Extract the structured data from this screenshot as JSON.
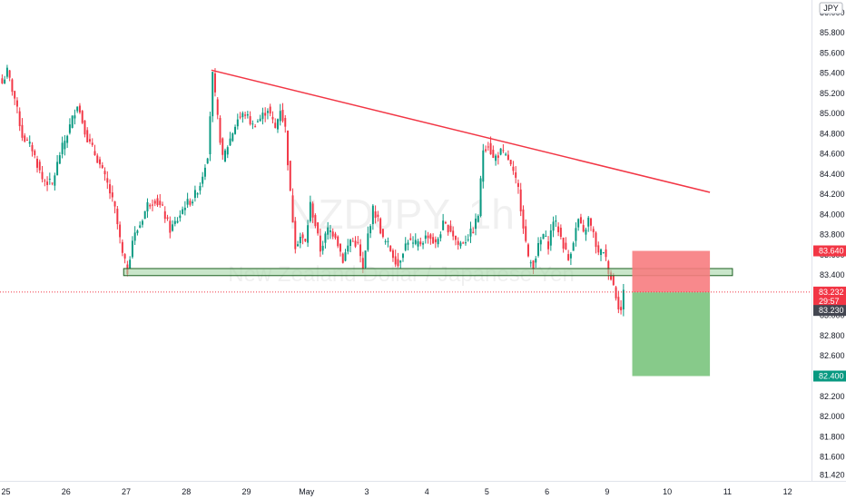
{
  "chart_data": {
    "type": "candlestick",
    "symbol": "NZDJPY",
    "interval": "1h",
    "watermark_title": "NZDJPY, 1h",
    "watermark_subtitle": "New Zealand Dollar / Japanese Yen",
    "currency": "JPY",
    "ylim": [
      81.38,
      86.08
    ],
    "y_ticks": [
      "86.000",
      "85.800",
      "85.600",
      "85.400",
      "85.200",
      "85.000",
      "84.800",
      "84.600",
      "84.400",
      "84.200",
      "84.000",
      "83.800",
      "83.600",
      "83.400",
      "83.200",
      "83.000",
      "82.800",
      "82.600",
      "82.400",
      "82.200",
      "82.000",
      "81.800",
      "81.600",
      "81.420"
    ],
    "x_ticks": [
      {
        "label": "25",
        "bar": 2
      },
      {
        "label": "26",
        "bar": 26
      },
      {
        "label": "27",
        "bar": 50
      },
      {
        "label": "28",
        "bar": 74
      },
      {
        "label": "29",
        "bar": 98
      },
      {
        "label": "May",
        "bar": 122
      },
      {
        "label": "3",
        "bar": 146
      },
      {
        "label": "4",
        "bar": 170
      },
      {
        "label": "5",
        "bar": 194
      },
      {
        "label": "6",
        "bar": 218
      },
      {
        "label": "9",
        "bar": 242
      },
      {
        "label": "10",
        "bar": 266
      },
      {
        "label": "11",
        "bar": 290
      },
      {
        "label": "12",
        "bar": 314
      }
    ],
    "anchors": [
      [
        0,
        85.3
      ],
      [
        2,
        85.42
      ],
      [
        5,
        85.15
      ],
      [
        8,
        84.78
      ],
      [
        12,
        84.65
      ],
      [
        16,
        84.35
      ],
      [
        20,
        84.3
      ],
      [
        23,
        84.6
      ],
      [
        26,
        84.8
      ],
      [
        30,
        85.1
      ],
      [
        34,
        84.75
      ],
      [
        38,
        84.55
      ],
      [
        42,
        84.3
      ],
      [
        45,
        84.05
      ],
      [
        48,
        83.6
      ],
      [
        50,
        83.44
      ],
      [
        52,
        83.75
      ],
      [
        55,
        83.9
      ],
      [
        58,
        84.1
      ],
      [
        61,
        84.15
      ],
      [
        64,
        84.05
      ],
      [
        67,
        83.85
      ],
      [
        70,
        83.95
      ],
      [
        73,
        84.1
      ],
      [
        76,
        84.15
      ],
      [
        79,
        84.3
      ],
      [
        82,
        84.6
      ],
      [
        84,
        85.38
      ],
      [
        86,
        84.95
      ],
      [
        88,
        84.55
      ],
      [
        91,
        84.75
      ],
      [
        94,
        84.95
      ],
      [
        97,
        85.0
      ],
      [
        100,
        84.88
      ],
      [
        103,
        84.95
      ],
      [
        106,
        85.05
      ],
      [
        109,
        84.85
      ],
      [
        111,
        85.05
      ],
      [
        113,
        84.85
      ],
      [
        115,
        84.2
      ],
      [
        117,
        83.7
      ],
      [
        119,
        83.78
      ],
      [
        121,
        83.72
      ],
      [
        123,
        84.1
      ],
      [
        125,
        83.9
      ],
      [
        127,
        83.65
      ],
      [
        130,
        83.85
      ],
      [
        133,
        83.8
      ],
      [
        136,
        83.55
      ],
      [
        139,
        83.75
      ],
      [
        142,
        83.7
      ],
      [
        144,
        83.45
      ],
      [
        146,
        83.8
      ],
      [
        148,
        84.05
      ],
      [
        150,
        83.95
      ],
      [
        152,
        83.75
      ],
      [
        154,
        83.7
      ],
      [
        156,
        83.6
      ],
      [
        158,
        83.5
      ],
      [
        160,
        83.65
      ],
      [
        162,
        83.75
      ],
      [
        164,
        83.7
      ],
      [
        167,
        83.72
      ],
      [
        170,
        83.8
      ],
      [
        173,
        83.7
      ],
      [
        176,
        83.9
      ],
      [
        179,
        83.85
      ],
      [
        182,
        83.7
      ],
      [
        185,
        83.75
      ],
      [
        188,
        83.85
      ],
      [
        190,
        84.0
      ],
      [
        192,
        84.65
      ],
      [
        194,
        84.7
      ],
      [
        196,
        84.55
      ],
      [
        199,
        84.62
      ],
      [
        202,
        84.55
      ],
      [
        204,
        84.4
      ],
      [
        206,
        84.25
      ],
      [
        208,
        83.9
      ],
      [
        210,
        83.55
      ],
      [
        212,
        83.5
      ],
      [
        214,
        83.68
      ],
      [
        216,
        83.8
      ],
      [
        218,
        83.7
      ],
      [
        220,
        83.95
      ],
      [
        222,
        83.85
      ],
      [
        224,
        83.7
      ],
      [
        226,
        83.55
      ],
      [
        228,
        83.75
      ],
      [
        230,
        83.95
      ],
      [
        232,
        83.8
      ],
      [
        234,
        83.95
      ],
      [
        236,
        83.8
      ],
      [
        238,
        83.6
      ],
      [
        240,
        83.65
      ],
      [
        242,
        83.45
      ],
      [
        244,
        83.3
      ],
      [
        246,
        83.1
      ],
      [
        247,
        83.05
      ],
      [
        248,
        83.23
      ]
    ],
    "trendline": {
      "start": {
        "bar": 84,
        "price": 85.43
      },
      "end": {
        "bar": 283,
        "price": 84.22
      }
    },
    "support_zone": {
      "start_bar": 49,
      "end_bar": 292,
      "top": 83.465,
      "bottom": 83.395
    },
    "position": {
      "start_bar": 252,
      "end_bar": 283,
      "entry": 83.23,
      "stop": 83.64,
      "target": 82.4,
      "stop_color": "#f77c80",
      "target_color": "#81c784"
    },
    "current_price": 83.232,
    "price_labels": [
      {
        "text": "83.640",
        "price": 83.64,
        "color": "#f23645"
      },
      {
        "text": "83.232",
        "price": 83.232,
        "color": "#f23645"
      },
      {
        "text": "29:57",
        "price": 83.14,
        "color": "#f23645"
      },
      {
        "text": "83.230",
        "price": 83.05,
        "color": "#434651"
      },
      {
        "text": "82.400",
        "price": 82.4,
        "color": "#089981"
      }
    ],
    "colors": {
      "up": "#089981",
      "down": "#f23645",
      "trendline": "#f23645",
      "zone_fill": "#a5d6a7",
      "zone_border": "#1b5e20"
    }
  }
}
